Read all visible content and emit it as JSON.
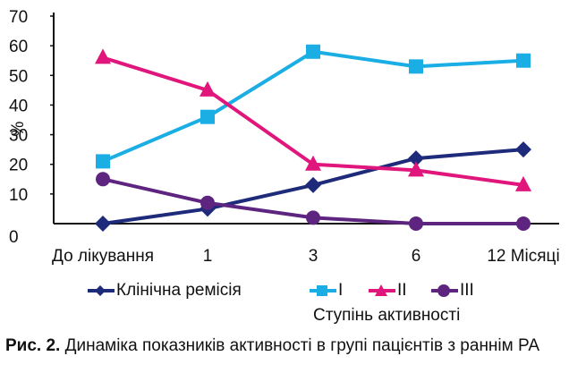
{
  "chart_data": {
    "type": "line",
    "categories": [
      "До лікування",
      "1",
      "3",
      "6",
      "12 Місяці"
    ],
    "ylabel": "%",
    "xlabel": "",
    "ylim": [
      0,
      70
    ],
    "yticks": [
      0,
      10,
      20,
      30,
      40,
      50,
      60,
      70
    ],
    "grid": false,
    "series": [
      {
        "name": "Клінічна ремісія",
        "color": "#1e2b7a",
        "marker": "diamond",
        "values": [
          0,
          5,
          13,
          22,
          25
        ]
      },
      {
        "name": "I",
        "color": "#1aaee5",
        "marker": "square",
        "values": [
          21,
          36,
          58,
          53,
          55
        ]
      },
      {
        "name": "II",
        "color": "#e0167c",
        "marker": "triangle",
        "values": [
          56,
          45,
          20,
          18,
          13
        ]
      },
      {
        "name": "III",
        "color": "#5e2580",
        "marker": "circle",
        "values": [
          15,
          7,
          2,
          0,
          0
        ]
      }
    ],
    "legend_group_label": "Ступінь активності"
  },
  "caption": {
    "label": "Рис. 2.",
    "text": " Динаміка показників активності в групі пацієнтів з раннім РА"
  }
}
